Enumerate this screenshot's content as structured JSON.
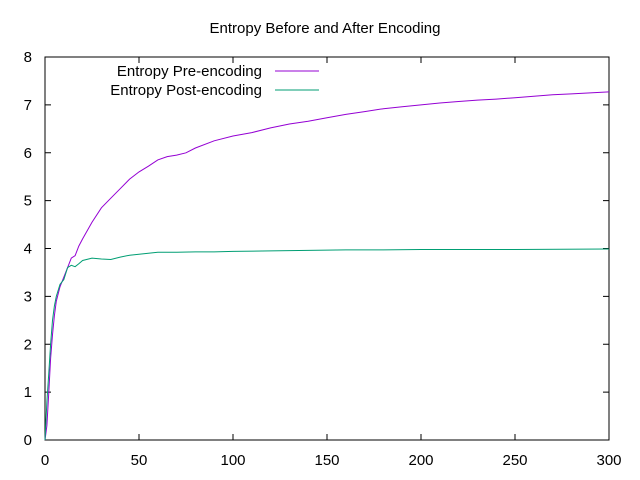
{
  "chart_data": {
    "type": "line",
    "title": "Entropy Before and After Encoding",
    "xlabel": "",
    "ylabel": "",
    "xlim": [
      0,
      300
    ],
    "ylim": [
      0,
      8
    ],
    "xticks": [
      0,
      50,
      100,
      150,
      200,
      250,
      300
    ],
    "yticks": [
      0,
      1,
      2,
      3,
      4,
      5,
      6,
      7,
      8
    ],
    "grid": false,
    "legend_position": "top-left",
    "series": [
      {
        "name": "Entropy Pre-encoding",
        "color": "#9400d3",
        "x": [
          0,
          1,
          2,
          3,
          4,
          5,
          6,
          8,
          10,
          12,
          14,
          16,
          18,
          20,
          25,
          30,
          35,
          40,
          45,
          50,
          55,
          60,
          65,
          70,
          75,
          80,
          90,
          100,
          110,
          120,
          130,
          140,
          150,
          160,
          170,
          180,
          190,
          200,
          210,
          220,
          230,
          240,
          250,
          260,
          270,
          280,
          290,
          300
        ],
        "values": [
          0,
          0.3,
          1.0,
          1.7,
          2.2,
          2.6,
          2.9,
          3.2,
          3.4,
          3.6,
          3.8,
          3.85,
          4.05,
          4.2,
          4.55,
          4.85,
          5.05,
          5.25,
          5.45,
          5.6,
          5.72,
          5.85,
          5.92,
          5.95,
          6.0,
          6.1,
          6.25,
          6.35,
          6.42,
          6.52,
          6.6,
          6.66,
          6.73,
          6.8,
          6.86,
          6.92,
          6.96,
          7.0,
          7.04,
          7.07,
          7.1,
          7.12,
          7.15,
          7.18,
          7.21,
          7.23,
          7.25,
          7.27
        ]
      },
      {
        "name": "Entropy Post-encoding",
        "color": "#009e73",
        "x": [
          0,
          1,
          2,
          3,
          4,
          5,
          6,
          8,
          10,
          12,
          14,
          16,
          18,
          20,
          25,
          30,
          35,
          40,
          45,
          50,
          60,
          70,
          80,
          90,
          100,
          120,
          140,
          160,
          180,
          200,
          250,
          300
        ],
        "values": [
          0,
          0.8,
          1.4,
          2.0,
          2.5,
          2.8,
          3.0,
          3.25,
          3.35,
          3.6,
          3.65,
          3.62,
          3.68,
          3.75,
          3.8,
          3.78,
          3.77,
          3.82,
          3.86,
          3.88,
          3.92,
          3.92,
          3.93,
          3.93,
          3.94,
          3.95,
          3.96,
          3.97,
          3.97,
          3.98,
          3.98,
          3.99
        ]
      }
    ]
  }
}
